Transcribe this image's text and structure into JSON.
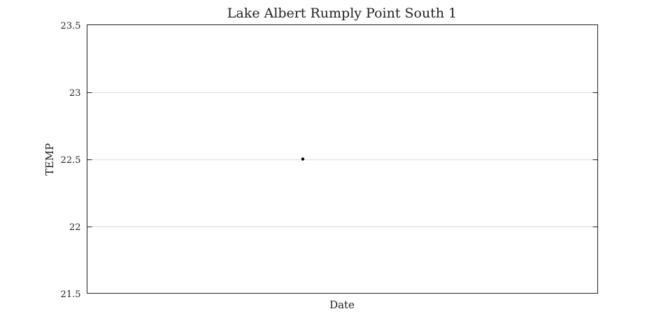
{
  "chart_data": {
    "type": "scatter",
    "title": "Lake Albert Rumply Point South 1",
    "xlabel": "Date",
    "ylabel": "TEMP",
    "ylim": [
      21.5,
      23.5
    ],
    "yticks": [
      21.5,
      22,
      22.5,
      23,
      23.5
    ],
    "ytick_labels": [
      "21.5",
      "22",
      "22.5",
      "23",
      "23.5"
    ],
    "xlim": [
      0,
      1
    ],
    "grid": true,
    "series": [
      {
        "name": "TEMP",
        "x": [
          0.4225
        ],
        "y": [
          22.5
        ]
      }
    ]
  }
}
